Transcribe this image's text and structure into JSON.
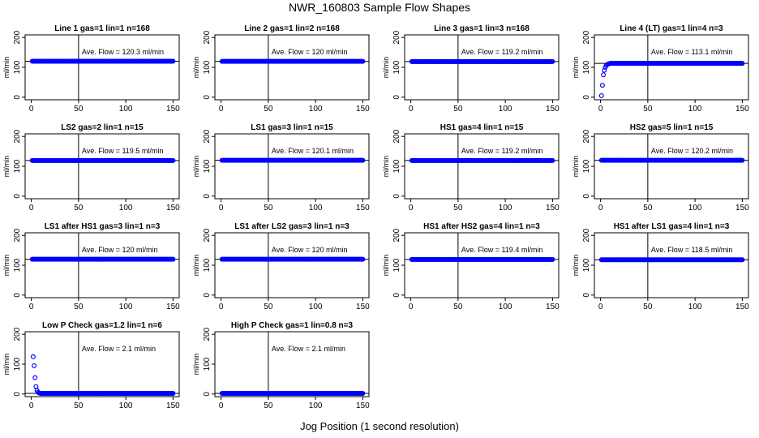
{
  "figure": {
    "title": "NWR_160803  Sample Flow Shapes",
    "xlabel": "Jog Position (1 second resolution)",
    "point_color": "#0000ff",
    "line_color": "#000000"
  },
  "chart_data": [
    {
      "type": "scatter",
      "title": "Line 1 gas=1 lin=1 n=168",
      "ylabel": "ml/min",
      "annotation": "Ave. Flow =  120.3  ml/min",
      "avg": 120.3,
      "vline": 50,
      "xlim": [
        0,
        150
      ],
      "ylim": [
        0,
        200
      ],
      "xticks": [
        0,
        50,
        100,
        150
      ],
      "yticks": [
        0,
        100,
        200
      ],
      "series": [
        {
          "shape": "flat",
          "x_range": [
            1,
            150
          ],
          "value": 120.3
        }
      ]
    },
    {
      "type": "scatter",
      "title": "Line 2 gas=1 lin=2 n=168",
      "ylabel": "ml/min",
      "annotation": "Ave. Flow =  120  ml/min",
      "avg": 120,
      "vline": 50,
      "xlim": [
        0,
        150
      ],
      "ylim": [
        0,
        200
      ],
      "xticks": [
        0,
        50,
        100,
        150
      ],
      "yticks": [
        0,
        100,
        200
      ],
      "series": [
        {
          "shape": "flat",
          "x_range": [
            1,
            150
          ],
          "value": 120
        }
      ]
    },
    {
      "type": "scatter",
      "title": "Line 3 gas=1 lin=3 n=168",
      "ylabel": "ml/min",
      "annotation": "Ave. Flow =  119.2  ml/min",
      "avg": 119.2,
      "vline": 50,
      "xlim": [
        0,
        150
      ],
      "ylim": [
        0,
        200
      ],
      "xticks": [
        0,
        50,
        100,
        150
      ],
      "yticks": [
        0,
        100,
        200
      ],
      "series": [
        {
          "shape": "flat",
          "x_range": [
            1,
            150
          ],
          "value": 119.2
        }
      ]
    },
    {
      "type": "scatter",
      "title": "Line 4 (LT) gas=1 lin=4 n=3",
      "ylabel": "ml/min",
      "annotation": "Ave. Flow =  113.1  ml/min",
      "avg": 113.1,
      "vline": 50,
      "xlim": [
        0,
        150
      ],
      "ylim": [
        0,
        200
      ],
      "xticks": [
        0,
        50,
        100,
        150
      ],
      "yticks": [
        0,
        100,
        200
      ],
      "series": [
        {
          "shape": "rise",
          "x_range": [
            1,
            150
          ],
          "value": 113.1,
          "start_points": [
            [
              1,
              5
            ],
            [
              2,
              40
            ],
            [
              3,
              75
            ],
            [
              4,
              90
            ],
            [
              5,
              100
            ],
            [
              6,
              106
            ],
            [
              7,
              109
            ],
            [
              8,
              111
            ],
            [
              9,
              112
            ]
          ]
        }
      ]
    },
    {
      "type": "scatter",
      "title": "LS2 gas=2 lin=1 n=15",
      "ylabel": "ml/min",
      "annotation": "Ave. Flow =  119.5  ml/min",
      "avg": 119.5,
      "vline": 50,
      "xlim": [
        0,
        150
      ],
      "ylim": [
        0,
        200
      ],
      "xticks": [
        0,
        50,
        100,
        150
      ],
      "yticks": [
        0,
        100,
        200
      ],
      "series": [
        {
          "shape": "flat",
          "x_range": [
            1,
            150
          ],
          "value": 119.5
        }
      ]
    },
    {
      "type": "scatter",
      "title": "LS1 gas=3 lin=1 n=15",
      "ylabel": "ml/min",
      "annotation": "Ave. Flow =  120.1  ml/min",
      "avg": 120.1,
      "vline": 50,
      "xlim": [
        0,
        150
      ],
      "ylim": [
        0,
        200
      ],
      "xticks": [
        0,
        50,
        100,
        150
      ],
      "yticks": [
        0,
        100,
        200
      ],
      "series": [
        {
          "shape": "flat",
          "x_range": [
            1,
            150
          ],
          "value": 120.1
        }
      ]
    },
    {
      "type": "scatter",
      "title": "HS1 gas=4 lin=1 n=15",
      "ylabel": "ml/min",
      "annotation": "Ave. Flow =  119.2  ml/min",
      "avg": 119.2,
      "vline": 50,
      "xlim": [
        0,
        150
      ],
      "ylim": [
        0,
        200
      ],
      "xticks": [
        0,
        50,
        100,
        150
      ],
      "yticks": [
        0,
        100,
        200
      ],
      "series": [
        {
          "shape": "flat",
          "x_range": [
            1,
            150
          ],
          "value": 119.2
        }
      ]
    },
    {
      "type": "scatter",
      "title": "HS2 gas=5 lin=1 n=15",
      "ylabel": "ml/min",
      "annotation": "Ave. Flow =  120.2  ml/min",
      "avg": 120.2,
      "vline": 50,
      "xlim": [
        0,
        150
      ],
      "ylim": [
        0,
        200
      ],
      "xticks": [
        0,
        50,
        100,
        150
      ],
      "yticks": [
        0,
        100,
        200
      ],
      "series": [
        {
          "shape": "flat",
          "x_range": [
            1,
            150
          ],
          "value": 120.2
        }
      ]
    },
    {
      "type": "scatter",
      "title": "LS1 after HS1 gas=3 lin=1 n=3",
      "ylabel": "ml/min",
      "annotation": "Ave. Flow =  120  ml/min",
      "avg": 120,
      "vline": 50,
      "xlim": [
        0,
        150
      ],
      "ylim": [
        0,
        200
      ],
      "xticks": [
        0,
        50,
        100,
        150
      ],
      "yticks": [
        0,
        100,
        200
      ],
      "series": [
        {
          "shape": "flat",
          "x_range": [
            1,
            150
          ],
          "value": 120
        }
      ]
    },
    {
      "type": "scatter",
      "title": "LS1 after LS2 gas=3 lin=1 n=3",
      "ylabel": "ml/min",
      "annotation": "Ave. Flow =  120  ml/min",
      "avg": 120,
      "vline": 50,
      "xlim": [
        0,
        150
      ],
      "ylim": [
        0,
        200
      ],
      "xticks": [
        0,
        50,
        100,
        150
      ],
      "yticks": [
        0,
        100,
        200
      ],
      "series": [
        {
          "shape": "flat",
          "x_range": [
            1,
            150
          ],
          "value": 120
        }
      ]
    },
    {
      "type": "scatter",
      "title": "HS1 after HS2 gas=4 lin=1 n=3",
      "ylabel": "ml/min",
      "annotation": "Ave. Flow =  119.4  ml/min",
      "avg": 119.4,
      "vline": 50,
      "xlim": [
        0,
        150
      ],
      "ylim": [
        0,
        200
      ],
      "xticks": [
        0,
        50,
        100,
        150
      ],
      "yticks": [
        0,
        100,
        200
      ],
      "series": [
        {
          "shape": "flat",
          "x_range": [
            1,
            150
          ],
          "value": 119.4
        }
      ]
    },
    {
      "type": "scatter",
      "title": "HS1 after LS1 gas=4 lin=1 n=3",
      "ylabel": "ml/min",
      "annotation": "Ave. Flow =  118.5  ml/min",
      "avg": 118.5,
      "vline": 50,
      "xlim": [
        0,
        150
      ],
      "ylim": [
        0,
        200
      ],
      "xticks": [
        0,
        50,
        100,
        150
      ],
      "yticks": [
        0,
        100,
        200
      ],
      "series": [
        {
          "shape": "flat",
          "x_range": [
            1,
            150
          ],
          "value": 118.5
        }
      ]
    },
    {
      "type": "scatter",
      "title": "Low P Check gas=1.2 lin=1 n=6",
      "ylabel": "ml/min",
      "annotation": "Ave. Flow =  2.1  ml/min",
      "avg": 2.1,
      "vline": 50,
      "xlim": [
        0,
        150
      ],
      "ylim": [
        0,
        200
      ],
      "xticks": [
        0,
        50,
        100,
        150
      ],
      "yticks": [
        0,
        100,
        200
      ],
      "series": [
        {
          "shape": "decay",
          "x_range": [
            1,
            150
          ],
          "value": 2.1,
          "start_points": [
            [
              2,
              125
            ],
            [
              3,
              95
            ],
            [
              4,
              55
            ],
            [
              5,
              25
            ],
            [
              6,
              12
            ],
            [
              7,
              6
            ],
            [
              8,
              4
            ],
            [
              9,
              3
            ]
          ]
        }
      ]
    },
    {
      "type": "scatter",
      "title": "High P Check gas=1 lin=0.8 n=3",
      "ylabel": "ml/min",
      "annotation": "Ave. Flow =  2.1  ml/min",
      "avg": 2.1,
      "vline": 50,
      "xlim": [
        0,
        150
      ],
      "ylim": [
        0,
        200
      ],
      "xticks": [
        0,
        50,
        100,
        150
      ],
      "yticks": [
        0,
        100,
        200
      ],
      "series": [
        {
          "shape": "flat",
          "x_range": [
            1,
            150
          ],
          "value": 2.1
        }
      ]
    }
  ]
}
